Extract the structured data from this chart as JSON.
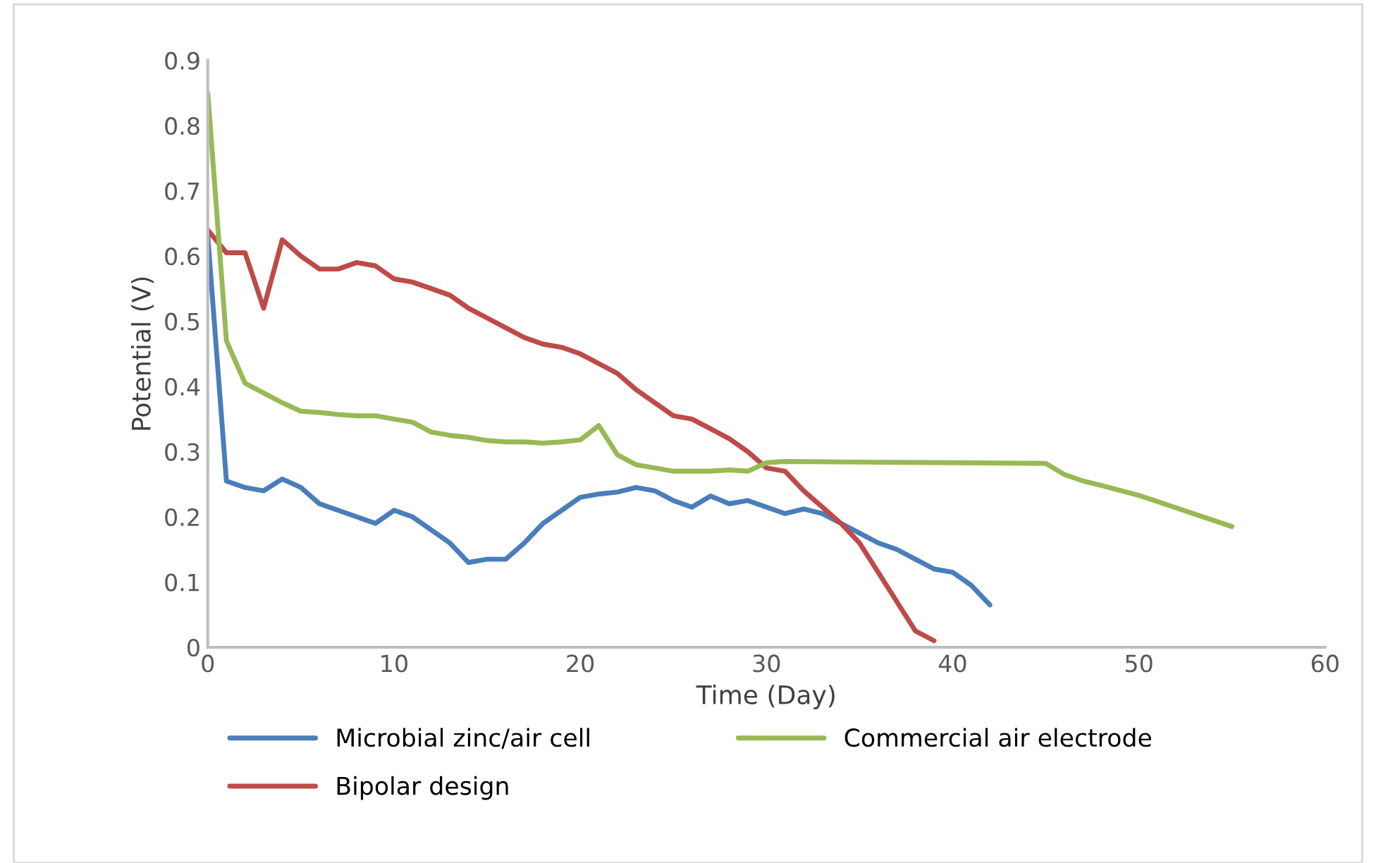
{
  "chart_data": {
    "type": "line",
    "xlabel": "Time (Day)",
    "ylabel": "Potential (V)",
    "xlim": [
      0,
      60
    ],
    "ylim": [
      0,
      0.9
    ],
    "xticks": [
      0,
      10,
      20,
      30,
      40,
      50,
      60
    ],
    "yticks": [
      {
        "value": 0,
        "label": "0"
      },
      0.1,
      0.2,
      0.3,
      0.4,
      0.5,
      0.6,
      0.7,
      0.8,
      0.9
    ],
    "grid": false,
    "legend": "bottom",
    "marker": "none",
    "line_style": "solid",
    "series": [
      {
        "name": "Microbial zinc/air cell",
        "color": "#4a7ebb",
        "x": [
          0,
          1,
          2,
          3,
          4,
          5,
          6,
          7,
          8,
          9,
          10,
          11,
          12,
          13,
          14,
          15,
          16,
          17,
          18,
          19,
          20,
          21,
          22,
          23,
          24,
          25,
          26,
          27,
          28,
          29,
          30,
          31,
          32,
          33,
          34,
          35,
          36,
          37,
          38,
          39,
          40,
          41,
          42
        ],
        "values": [
          0.63,
          0.255,
          0.245,
          0.24,
          0.258,
          0.245,
          0.22,
          0.21,
          0.2,
          0.19,
          0.21,
          0.2,
          0.18,
          0.16,
          0.13,
          0.135,
          0.135,
          0.16,
          0.19,
          0.21,
          0.23,
          0.235,
          0.238,
          0.245,
          0.24,
          0.225,
          0.215,
          0.232,
          0.22,
          0.225,
          0.215,
          0.205,
          0.212,
          0.205,
          0.19,
          0.175,
          0.16,
          0.15,
          0.135,
          0.12,
          0.115,
          0.095,
          0.065
        ]
      },
      {
        "name": "Bipolar design",
        "color": "#be4b48",
        "x": [
          0,
          1,
          2,
          3,
          4,
          5,
          6,
          7,
          8,
          9,
          10,
          11,
          12,
          13,
          14,
          15,
          16,
          17,
          18,
          19,
          20,
          21,
          22,
          23,
          24,
          25,
          26,
          27,
          28,
          29,
          30,
          31,
          32,
          33,
          34,
          35,
          36,
          37,
          38,
          39
        ],
        "values": [
          0.64,
          0.605,
          0.605,
          0.52,
          0.625,
          0.6,
          0.58,
          0.58,
          0.59,
          0.585,
          0.565,
          0.56,
          0.55,
          0.54,
          0.52,
          0.505,
          0.49,
          0.475,
          0.465,
          0.46,
          0.45,
          0.435,
          0.42,
          0.395,
          0.375,
          0.355,
          0.35,
          0.335,
          0.32,
          0.3,
          0.275,
          0.27,
          0.24,
          0.215,
          0.19,
          0.16,
          0.115,
          0.07,
          0.025,
          0.01
        ]
      },
      {
        "name": "Commercial air electrode",
        "color": "#98b954",
        "x": [
          0,
          1,
          2,
          3,
          4,
          5,
          6,
          7,
          8,
          9,
          10,
          11,
          12,
          13,
          14,
          15,
          16,
          17,
          18,
          19,
          20,
          21,
          22,
          23,
          24,
          25,
          26,
          27,
          28,
          29,
          30,
          31,
          35,
          40,
          45,
          46,
          47,
          48,
          50,
          55
        ],
        "values": [
          0.85,
          0.47,
          0.405,
          0.39,
          0.375,
          0.362,
          0.36,
          0.357,
          0.355,
          0.355,
          0.35,
          0.345,
          0.33,
          0.325,
          0.322,
          0.317,
          0.315,
          0.315,
          0.313,
          0.315,
          0.318,
          0.34,
          0.295,
          0.28,
          0.275,
          0.27,
          0.27,
          0.27,
          0.272,
          0.27,
          0.283,
          0.285,
          0.284,
          0.283,
          0.282,
          0.265,
          0.255,
          0.248,
          0.233,
          0.185
        ]
      }
    ]
  }
}
